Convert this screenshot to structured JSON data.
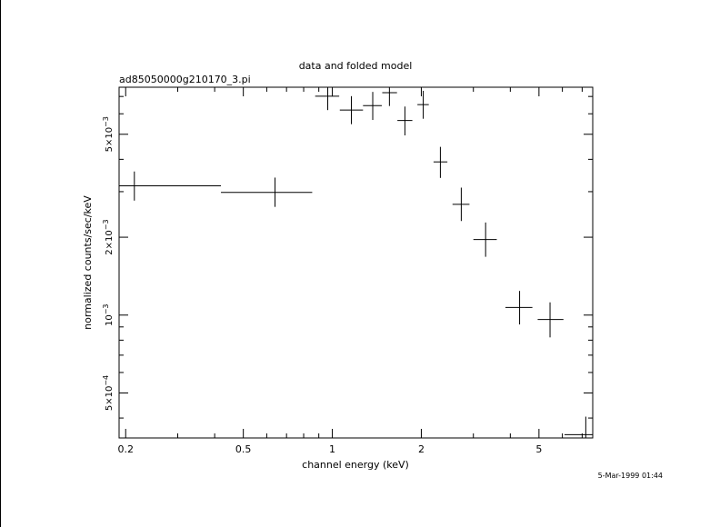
{
  "chart_data": {
    "type": "scatter",
    "title": "data and folded model",
    "subtitle": "ad85050000g210170_3.pi",
    "xlabel": "channel energy (keV)",
    "ylabel": "normalized counts/sec/keV",
    "timestamp": "5-Mar-1999 01:44",
    "x_scale": "log",
    "y_scale": "log",
    "xlim": [
      0.19,
      7.6
    ],
    "ylim": [
      0.000335,
      0.0076
    ],
    "x_ticks": [
      {
        "value": 0.2,
        "label": "0.2"
      },
      {
        "value": 0.5,
        "label": "0.5"
      },
      {
        "value": 1,
        "label": "1"
      },
      {
        "value": 2,
        "label": "2"
      },
      {
        "value": 5,
        "label": "5"
      }
    ],
    "y_ticks": [
      {
        "value": 0.0005,
        "base": "5×10",
        "exp": "−4"
      },
      {
        "value": 0.001,
        "base": "10",
        "exp": "−3"
      },
      {
        "value": 0.002,
        "base": "2×10",
        "exp": "−3"
      },
      {
        "value": 0.005,
        "base": "5×10",
        "exp": "−3"
      }
    ],
    "grid": false,
    "points": [
      {
        "x": 0.214,
        "xlo": 0.19,
        "xhi": 0.42,
        "y": 0.00316,
        "ylo": 0.00277,
        "yhi": 0.00359
      },
      {
        "x": 0.64,
        "xlo": 0.42,
        "xhi": 0.855,
        "y": 0.00298,
        "ylo": 0.00262,
        "yhi": 0.0034
      },
      {
        "x": 0.965,
        "xlo": 0.875,
        "xhi": 1.055,
        "y": 0.00702,
        "ylo": 0.0062,
        "yhi": 0.0076
      },
      {
        "x": 1.16,
        "xlo": 1.06,
        "xhi": 1.27,
        "y": 0.0062,
        "ylo": 0.00547,
        "yhi": 0.00702
      },
      {
        "x": 1.37,
        "xlo": 1.27,
        "xhi": 1.47,
        "y": 0.00645,
        "ylo": 0.00568,
        "yhi": 0.00729
      },
      {
        "x": 1.56,
        "xlo": 1.475,
        "xhi": 1.655,
        "y": 0.00724,
        "ylo": 0.00643,
        "yhi": 0.0076
      },
      {
        "x": 1.76,
        "xlo": 1.66,
        "xhi": 1.865,
        "y": 0.00565,
        "ylo": 0.00495,
        "yhi": 0.0064
      },
      {
        "x": 2.03,
        "xlo": 1.94,
        "xhi": 2.12,
        "y": 0.00651,
        "ylo": 0.00574,
        "yhi": 0.00736
      },
      {
        "x": 2.32,
        "xlo": 2.2,
        "xhi": 2.45,
        "y": 0.00391,
        "ylo": 0.00339,
        "yhi": 0.00447
      },
      {
        "x": 2.73,
        "xlo": 2.55,
        "xhi": 2.91,
        "y": 0.00268,
        "ylo": 0.00231,
        "yhi": 0.00311
      },
      {
        "x": 3.3,
        "xlo": 3.0,
        "xhi": 3.6,
        "y": 0.00196,
        "ylo": 0.00168,
        "yhi": 0.00228
      },
      {
        "x": 4.3,
        "xlo": 3.85,
        "xhi": 4.75,
        "y": 0.00107,
        "ylo": 0.00092,
        "yhi": 0.00124
      },
      {
        "x": 5.45,
        "xlo": 4.95,
        "xhi": 6.05,
        "y": 0.000962,
        "ylo": 0.00082,
        "yhi": 0.00112
      },
      {
        "x": 7.2,
        "xlo": 6.1,
        "xhi": 7.6,
        "y": 0.000345,
        "ylo": 0.000335,
        "yhi": 0.000405
      }
    ]
  }
}
